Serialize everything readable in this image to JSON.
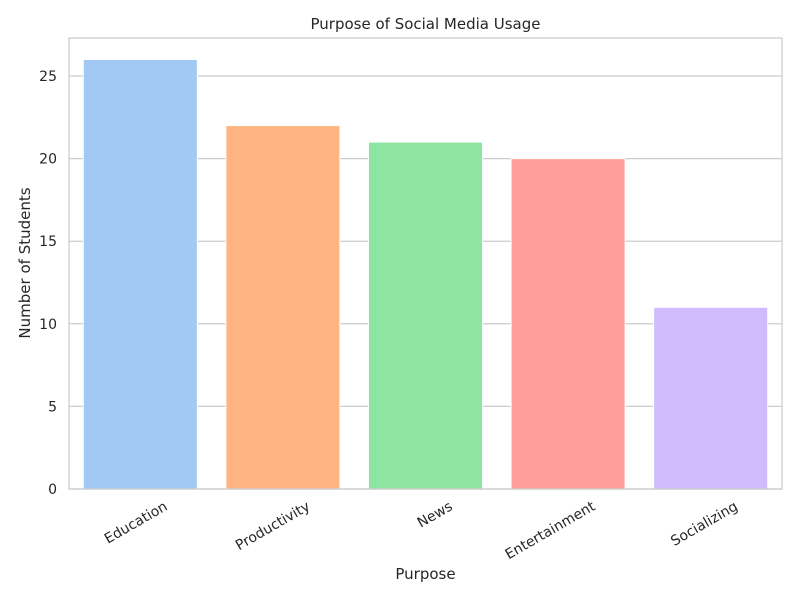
{
  "chart_data": {
    "type": "bar",
    "title": "Purpose of Social Media Usage",
    "xlabel": "Purpose",
    "ylabel": "Number of Students",
    "categories": [
      "Education",
      "Productivity",
      "News",
      "Entertainment",
      "Socializing"
    ],
    "values": [
      26,
      22,
      21,
      20,
      11
    ],
    "colors": [
      "#a1c9f4",
      "#ffb482",
      "#8de5a1",
      "#ff9f9b",
      "#d0bbff"
    ],
    "ylim": [
      0,
      27.3
    ],
    "yticks": [
      0,
      5,
      10,
      15,
      20,
      25
    ],
    "ytick_labels": [
      "0",
      "5",
      "10",
      "15",
      "20",
      "25"
    ],
    "grid": "horizontal",
    "legend": "none"
  }
}
